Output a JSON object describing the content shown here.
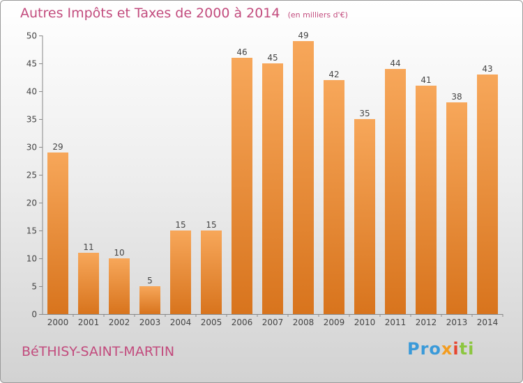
{
  "header": {
    "title": "Autres Impôts et Taxes de 2000 à 2014",
    "unit": "(en milliers d'€)"
  },
  "footer": {
    "commune": "BéTHISY-SAINT-MARTIN",
    "brand_parts": [
      "Pro",
      "x",
      "i",
      "ti"
    ]
  },
  "colors": {
    "title": "#c24b7d",
    "bar_light": "#f7a75a",
    "bar_dark": "#d8741d",
    "axis": "#888888"
  },
  "chart_data": {
    "type": "bar",
    "title": "Autres Impôts et Taxes de 2000 à 2014",
    "categories": [
      "2000",
      "2001",
      "2002",
      "2003",
      "2004",
      "2005",
      "2006",
      "2007",
      "2008",
      "2009",
      "2010",
      "2011",
      "2012",
      "2013",
      "2014"
    ],
    "values": [
      29,
      11,
      10,
      5,
      15,
      15,
      46,
      45,
      49,
      42,
      35,
      44,
      41,
      38,
      43
    ],
    "ylim": [
      0,
      50
    ],
    "yticks": [
      0,
      5,
      10,
      15,
      20,
      25,
      30,
      35,
      40,
      45,
      50
    ],
    "grid": false,
    "data_labels": true
  }
}
